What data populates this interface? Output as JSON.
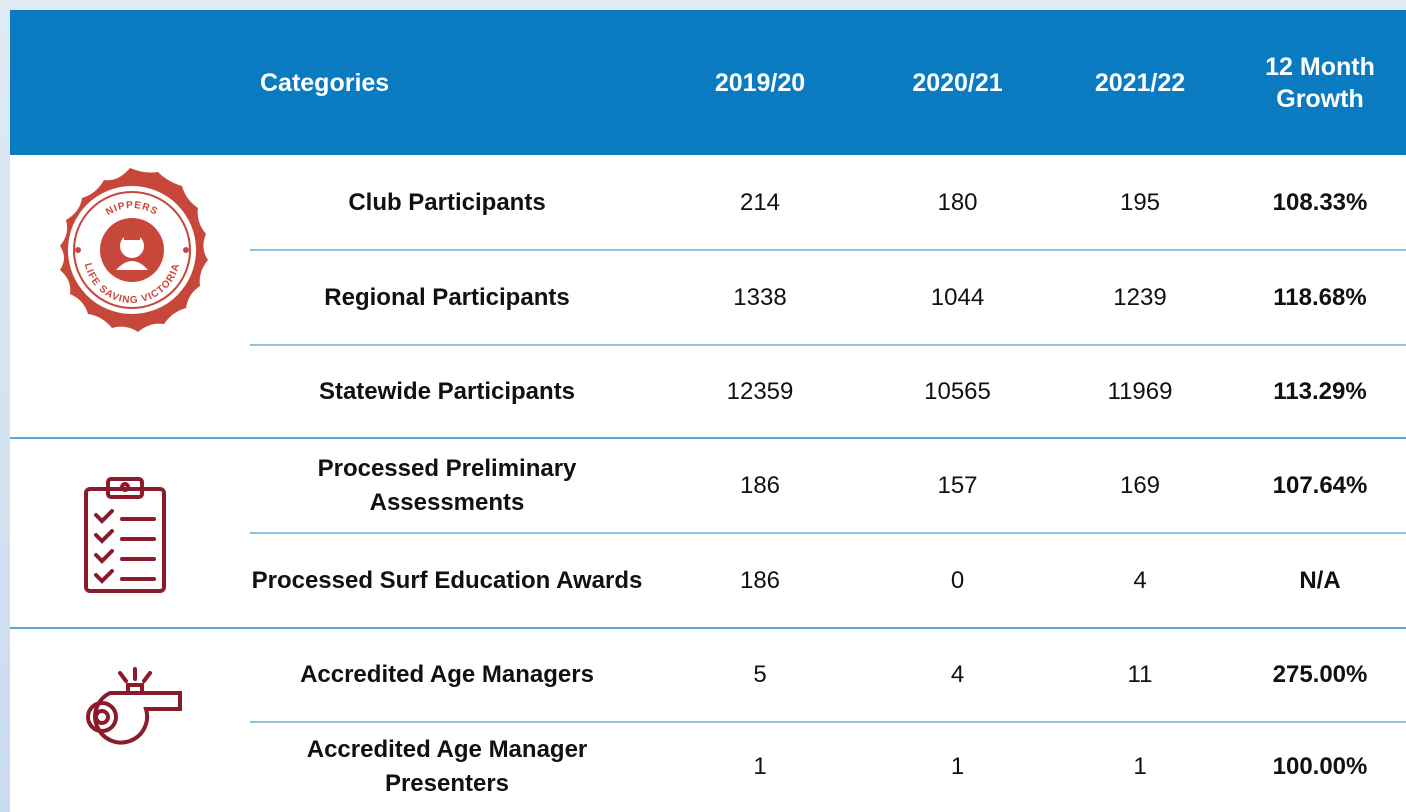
{
  "table": {
    "header": [
      "Categories",
      "2019/20",
      "2020/21",
      "2021/22",
      "12 Month Growth"
    ],
    "rows": [
      [
        "Club Participants",
        "214",
        "180",
        "195",
        "108.33%"
      ],
      [
        "Regional Participants",
        "1338",
        "1044",
        "1239",
        "118.68%"
      ],
      [
        "Statewide Participants",
        "12359",
        "10565",
        "11969",
        "113.29%"
      ],
      [
        "Processed Preliminary Assessments",
        "186",
        "157",
        "169",
        "107.64%"
      ],
      [
        "Processed Surf Education Awards",
        "186",
        "0",
        "4",
        "N/A"
      ],
      [
        "Accredited Age Managers",
        "5",
        "4",
        "11",
        "275.00%"
      ],
      [
        "Accredited Age Manager Presenters",
        "1",
        "1",
        "1",
        "100.00%"
      ]
    ]
  },
  "badge": {
    "top_text": "NIPPERS",
    "bottom_text": "LIFE SAVING VICTORIA"
  }
}
